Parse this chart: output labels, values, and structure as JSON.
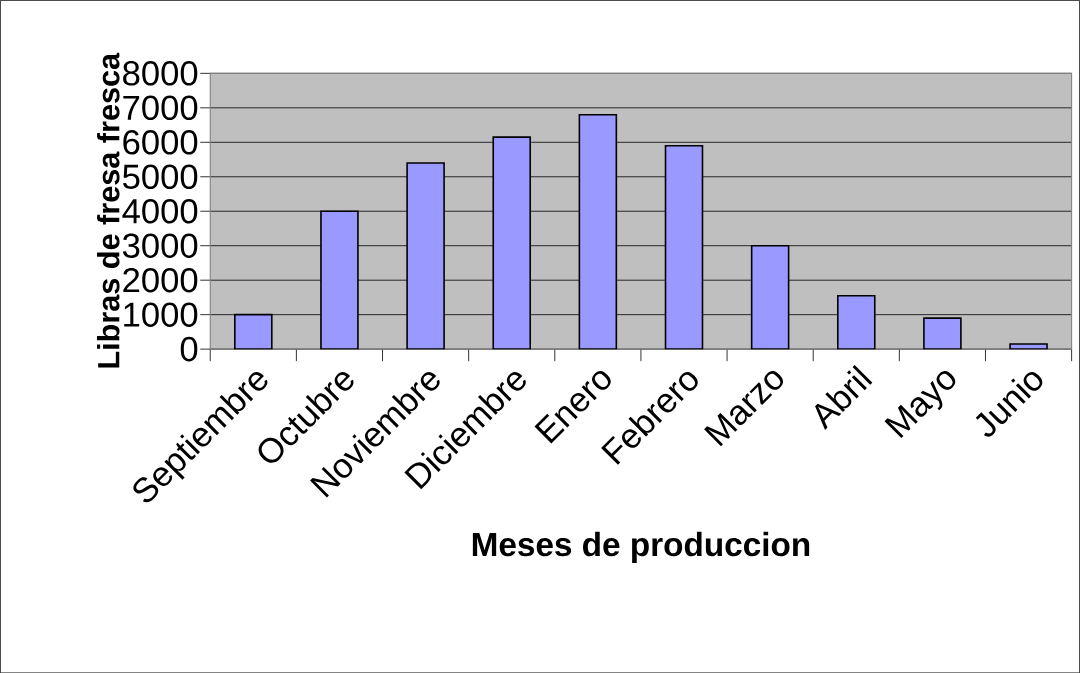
{
  "chart_data": {
    "type": "bar",
    "xlabel": "Meses de produccion",
    "ylabel": "Libras de fresa fresca",
    "categories": [
      "Septiembre",
      "Octubre",
      "Noviembre",
      "Diciembre",
      "Enero",
      "Febrero",
      "Marzo",
      "Abril",
      "Mayo",
      "Junio"
    ],
    "values": [
      1000,
      4000,
      5400,
      6150,
      6800,
      5900,
      3000,
      1550,
      900,
      150
    ],
    "color": "#9999ff",
    "ylim": [
      0,
      8000
    ],
    "yticks": [
      0,
      1000,
      2000,
      3000,
      4000,
      5000,
      6000,
      7000,
      8000
    ],
    "grid": "y"
  }
}
